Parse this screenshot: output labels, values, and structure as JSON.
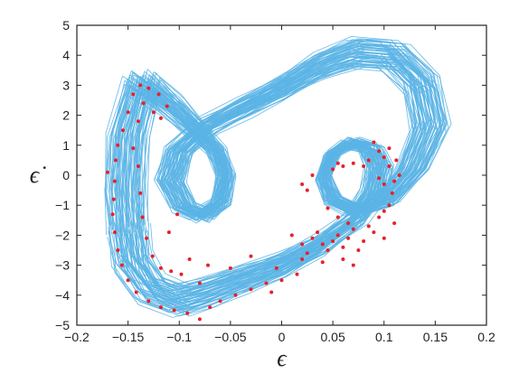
{
  "chart_data": {
    "type": "scatter",
    "title": "",
    "xlabel": "ϵ",
    "ylabel": "ϵ̇",
    "xlim": [
      -0.2,
      0.2
    ],
    "ylim": [
      -5,
      5
    ],
    "x_ticks": [
      "−0.2",
      "−0.15",
      "−0.1",
      "−0.05",
      "0",
      "0.05",
      "0.1",
      "0.15",
      "0.2"
    ],
    "y_ticks": [
      "−5",
      "−4",
      "−3",
      "−2",
      "−1",
      "0",
      "1",
      "2",
      "3",
      "4",
      "5"
    ],
    "grid": false,
    "legend": "none",
    "colors": {
      "trajectory": "#5ab4e5",
      "poincare_points": "#e8202a",
      "axes": "#222222"
    },
    "series": [
      {
        "type": "line",
        "description_role": "phase-portrait trajectory",
        "points": [
          [
            -0.165,
            -2.0
          ],
          [
            -0.16,
            -3.2
          ],
          [
            -0.14,
            -4.2
          ],
          [
            -0.11,
            -4.6
          ],
          [
            -0.08,
            -4.3
          ],
          [
            -0.04,
            -3.8
          ],
          [
            0.0,
            -3.3
          ],
          [
            0.04,
            -2.6
          ],
          [
            0.08,
            -1.6
          ],
          [
            0.1,
            -0.6
          ],
          [
            0.105,
            0.3
          ],
          [
            0.095,
            1.0
          ],
          [
            0.075,
            1.2
          ],
          [
            0.055,
            0.8
          ],
          [
            0.045,
            -0.1
          ],
          [
            0.055,
            -0.9
          ],
          [
            0.08,
            -1.3
          ],
          [
            0.11,
            -1.0
          ],
          [
            0.14,
            0.2
          ],
          [
            0.16,
            1.8
          ],
          [
            0.15,
            3.4
          ],
          [
            0.12,
            4.4
          ],
          [
            0.08,
            4.5
          ],
          [
            0.04,
            4.0
          ],
          [
            0.0,
            3.2
          ],
          [
            -0.04,
            2.5
          ],
          [
            -0.08,
            1.8
          ],
          [
            -0.11,
            0.9
          ],
          [
            -0.12,
            -0.2
          ],
          [
            -0.105,
            -1.2
          ],
          [
            -0.085,
            -1.5
          ],
          [
            -0.065,
            -1.0
          ],
          [
            -0.06,
            0.0
          ],
          [
            -0.07,
            0.9
          ],
          [
            -0.09,
            1.6
          ],
          [
            -0.12,
            2.6
          ],
          [
            -0.15,
            3.4
          ],
          [
            -0.165,
            1.5
          ],
          [
            -0.168,
            -0.5
          ],
          [
            -0.165,
            -2.0
          ]
        ]
      },
      {
        "type": "scatter",
        "description_role": "Poincaré section points",
        "points": [
          [
            -0.15,
            2.1
          ],
          [
            -0.145,
            2.7
          ],
          [
            -0.138,
            3.0
          ],
          [
            -0.13,
            2.9
          ],
          [
            -0.12,
            2.7
          ],
          [
            -0.112,
            2.3
          ],
          [
            -0.135,
            2.4
          ],
          [
            -0.125,
            2.1
          ],
          [
            -0.118,
            1.9
          ],
          [
            -0.14,
            1.8
          ],
          [
            -0.155,
            1.5
          ],
          [
            -0.16,
            1.0
          ],
          [
            -0.162,
            0.5
          ],
          [
            -0.163,
            -0.2
          ],
          [
            -0.164,
            -0.8
          ],
          [
            -0.165,
            -1.3
          ],
          [
            -0.163,
            -1.9
          ],
          [
            -0.16,
            -2.5
          ],
          [
            -0.156,
            -3.0
          ],
          [
            -0.15,
            -3.5
          ],
          [
            -0.142,
            -3.9
          ],
          [
            -0.13,
            -4.2
          ],
          [
            -0.118,
            -4.4
          ],
          [
            -0.105,
            -4.5
          ],
          [
            -0.092,
            -4.6
          ],
          [
            -0.08,
            -4.8
          ],
          [
            -0.07,
            -4.4
          ],
          [
            -0.06,
            -4.2
          ],
          [
            -0.045,
            -4.0
          ],
          [
            -0.03,
            -3.8
          ],
          [
            -0.015,
            -3.6
          ],
          [
            0.0,
            -3.5
          ],
          [
            -0.01,
            -3.9
          ],
          [
            -0.145,
            0.9
          ],
          [
            -0.14,
            0.3
          ],
          [
            -0.138,
            -0.6
          ],
          [
            -0.136,
            -1.4
          ],
          [
            -0.132,
            -2.1
          ],
          [
            -0.126,
            -2.7
          ],
          [
            -0.118,
            -3.1
          ],
          [
            -0.108,
            -3.2
          ],
          [
            -0.098,
            -3.3
          ],
          [
            -0.11,
            -1.9
          ],
          [
            -0.102,
            -1.3
          ],
          [
            -0.09,
            -2.8
          ],
          [
            -0.072,
            -3.0
          ],
          [
            -0.08,
            -3.6
          ],
          [
            -0.05,
            -3.1
          ],
          [
            -0.03,
            -2.7
          ],
          [
            0.01,
            -2.0
          ],
          [
            0.02,
            -2.3
          ],
          [
            0.025,
            -2.6
          ],
          [
            0.03,
            -2.1
          ],
          [
            0.035,
            -1.9
          ],
          [
            0.04,
            -2.3
          ],
          [
            0.045,
            -2.5
          ],
          [
            0.05,
            -2.2
          ],
          [
            0.055,
            -2.0
          ],
          [
            0.06,
            -2.4
          ],
          [
            0.065,
            -2.1
          ],
          [
            0.07,
            -1.8
          ],
          [
            0.075,
            -2.5
          ],
          [
            0.08,
            -2.2
          ],
          [
            0.085,
            -1.7
          ],
          [
            0.09,
            -1.9
          ],
          [
            0.095,
            -1.4
          ],
          [
            0.1,
            -1.2
          ],
          [
            0.105,
            -1.0
          ],
          [
            0.108,
            -0.6
          ],
          [
            0.11,
            -0.2
          ],
          [
            0.105,
            0.3
          ],
          [
            0.1,
            0.6
          ],
          [
            0.095,
            0.8
          ],
          [
            0.09,
            1.1
          ],
          [
            0.085,
            0.5
          ],
          [
            0.08,
            0.3
          ],
          [
            0.07,
            0.4
          ],
          [
            0.06,
            0.3
          ],
          [
            0.055,
            0.4
          ],
          [
            0.05,
            0.2
          ],
          [
            0.112,
            0.5
          ],
          [
            0.115,
            0.0
          ],
          [
            0.1,
            -0.3
          ],
          [
            0.095,
            -0.1
          ],
          [
            0.02,
            -0.3
          ],
          [
            0.025,
            -0.5
          ],
          [
            0.03,
            0.0
          ],
          [
            0.055,
            -1.4
          ],
          [
            0.065,
            -1.6
          ],
          [
            0.045,
            -1.1
          ],
          [
            0.02,
            -2.8
          ],
          [
            0.015,
            -3.3
          ],
          [
            -0.005,
            -3.1
          ],
          [
            0.1,
            -2.1
          ],
          [
            0.11,
            -1.6
          ],
          [
            0.07,
            -3.0
          ],
          [
            0.04,
            -2.9
          ],
          [
            0.06,
            -2.8
          ],
          [
            0.105,
            0.9
          ],
          [
            -0.17,
            0.1
          ]
        ]
      }
    ]
  }
}
